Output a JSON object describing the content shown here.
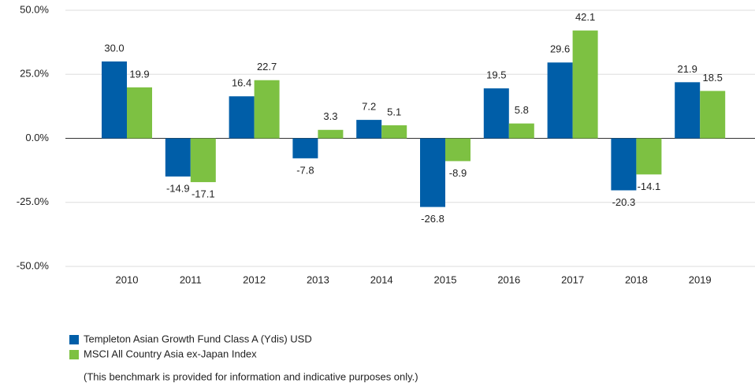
{
  "chart_data": {
    "type": "bar",
    "categories": [
      "2010",
      "2011",
      "2012",
      "2013",
      "2014",
      "2015",
      "2016",
      "2017",
      "2018",
      "2019"
    ],
    "series": [
      {
        "name": "Templeton Asian Growth Fund Class A (Ydis) USD",
        "color": "#005ea8",
        "values": [
          30.0,
          -14.9,
          16.4,
          -7.8,
          7.2,
          -26.8,
          19.5,
          29.6,
          -20.3,
          21.9
        ],
        "value_labels": [
          "30.0",
          "-14.9",
          "16.4",
          "-7.8",
          "7.2",
          "-26.8",
          "19.5",
          "29.6",
          "-20.3",
          "21.9"
        ]
      },
      {
        "name": "MSCI All Country Asia ex-Japan Index",
        "color": "#7dc142",
        "values": [
          19.9,
          -17.1,
          22.7,
          3.3,
          5.1,
          -8.9,
          5.8,
          42.1,
          -14.1,
          18.5
        ],
        "value_labels": [
          "19.9",
          "-17.1",
          "22.7",
          "3.3",
          "5.1",
          "-8.9",
          "5.8",
          "42.1",
          "-14.1",
          "18.5"
        ]
      }
    ],
    "ylim": [
      -50,
      50
    ],
    "yticks": [
      {
        "value": -50,
        "label": "-50.0%"
      },
      {
        "value": -25,
        "label": "-25.0%"
      },
      {
        "value": 0,
        "label": "0.0%"
      },
      {
        "value": 25,
        "label": "25.0%"
      },
      {
        "value": 50,
        "label": "50.0%"
      }
    ],
    "grid": true,
    "note": "(This benchmark is provided for information and indicative purposes only.)"
  }
}
